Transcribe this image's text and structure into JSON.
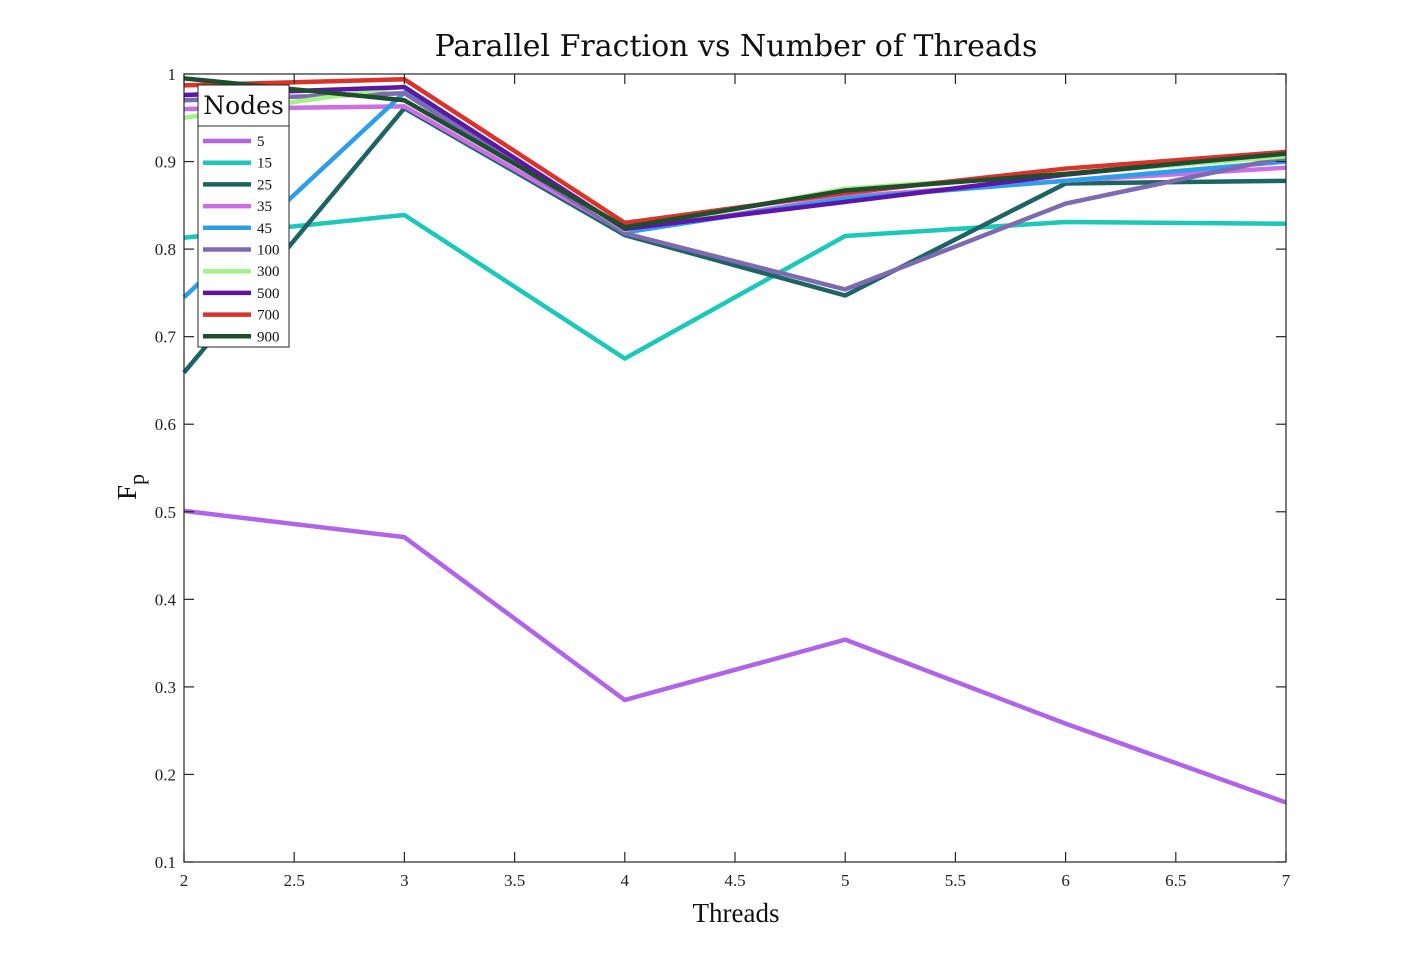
{
  "chart_data": {
    "type": "line",
    "title": "Parallel Fraction vs Number of Threads",
    "xlabel": "Threads",
    "ylabel": "F",
    "ylabel_subscript": "p",
    "xlim": [
      2,
      7
    ],
    "ylim": [
      0.1,
      1
    ],
    "xticks": [
      "2",
      "2.5",
      "3",
      "3.5",
      "4",
      "4.5",
      "5",
      "5.5",
      "6",
      "6.5",
      "7"
    ],
    "yticks": [
      "0.1",
      "0.2",
      "0.3",
      "0.4",
      "0.5",
      "0.6",
      "0.7",
      "0.8",
      "0.9",
      "1"
    ],
    "grid": false,
    "legend_title": "Nodes",
    "legend_position": "top-left",
    "x": [
      2,
      3,
      4,
      5,
      6,
      7
    ],
    "series": [
      {
        "name": "5",
        "color": "#b064e8",
        "values": [
          0.501,
          0.471,
          0.285,
          0.354,
          0.258,
          0.168
        ]
      },
      {
        "name": "15",
        "color": "#1ec8b8",
        "values": [
          0.813,
          0.839,
          0.675,
          0.815,
          0.831,
          0.829
        ]
      },
      {
        "name": "25",
        "color": "#1e6464",
        "values": [
          0.659,
          0.961,
          0.816,
          0.747,
          0.875,
          0.878
        ]
      },
      {
        "name": "35",
        "color": "#cc6ee6",
        "values": [
          0.96,
          0.963,
          0.819,
          0.86,
          0.878,
          0.893
        ]
      },
      {
        "name": "45",
        "color": "#2e9ee8",
        "values": [
          0.745,
          0.979,
          0.819,
          0.858,
          0.878,
          0.9
        ]
      },
      {
        "name": "100",
        "color": "#7e6ab0",
        "values": [
          0.97,
          0.978,
          0.818,
          0.754,
          0.852,
          0.905
        ]
      },
      {
        "name": "300",
        "color": "#a2f288",
        "values": [
          0.95,
          0.986,
          0.822,
          0.869,
          0.886,
          0.906
        ]
      },
      {
        "name": "500",
        "color": "#5e16a8",
        "values": [
          0.976,
          0.985,
          0.823,
          0.854,
          0.885,
          0.91
        ]
      },
      {
        "name": "700",
        "color": "#d8342a",
        "values": [
          0.987,
          0.994,
          0.83,
          0.864,
          0.892,
          0.911
        ]
      },
      {
        "name": "900",
        "color": "#1e4e2e",
        "values": [
          0.995,
          0.97,
          0.825,
          0.867,
          0.886,
          0.909
        ]
      }
    ]
  }
}
